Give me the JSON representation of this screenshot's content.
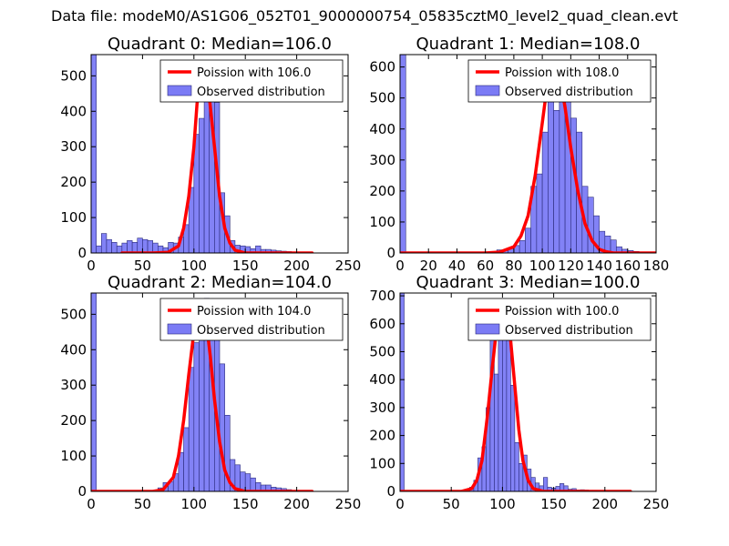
{
  "figure_title": "Data file: modeM0/AS1G06_052T01_9000000754_05835cztM0_level2_quad_clean.evt",
  "colors": {
    "bars": "#7b7bf5",
    "bar_edge": "#2a2a7a",
    "fit": "#ff0000"
  },
  "chart_data": [
    {
      "type": "bar",
      "title": "Quadrant 0: Median=106.0",
      "xlim": [
        0,
        250
      ],
      "ylim": [
        0,
        560
      ],
      "xticks": [
        0,
        50,
        100,
        150,
        200,
        250
      ],
      "yticks": [
        0,
        100,
        200,
        300,
        400,
        500
      ],
      "bin_width": 5,
      "bins": [
        [
          0,
          560
        ],
        [
          5,
          20
        ],
        [
          10,
          55
        ],
        [
          15,
          38
        ],
        [
          20,
          30
        ],
        [
          25,
          20
        ],
        [
          30,
          28
        ],
        [
          35,
          35
        ],
        [
          40,
          30
        ],
        [
          45,
          42
        ],
        [
          50,
          38
        ],
        [
          55,
          35
        ],
        [
          60,
          28
        ],
        [
          65,
          20
        ],
        [
          70,
          15
        ],
        [
          75,
          30
        ],
        [
          80,
          28
        ],
        [
          85,
          45
        ],
        [
          90,
          80
        ],
        [
          95,
          185
        ],
        [
          100,
          335
        ],
        [
          105,
          380
        ],
        [
          110,
          540
        ],
        [
          115,
          540
        ],
        [
          120,
          425
        ],
        [
          125,
          170
        ],
        [
          130,
          105
        ],
        [
          135,
          35
        ],
        [
          140,
          22
        ],
        [
          145,
          20
        ],
        [
          150,
          18
        ],
        [
          155,
          12
        ],
        [
          160,
          20
        ],
        [
          165,
          10
        ],
        [
          170,
          10
        ],
        [
          175,
          8
        ],
        [
          180,
          6
        ],
        [
          185,
          5
        ],
        [
          190,
          4
        ],
        [
          195,
          3
        ],
        [
          200,
          2
        ]
      ],
      "fit": {
        "x": [
          30,
          60,
          75,
          85,
          90,
          95,
          100,
          103,
          106,
          109,
          112,
          115,
          120,
          125,
          130,
          135,
          140,
          150,
          165,
          215
        ],
        "y": [
          0,
          0,
          2,
          20,
          70,
          160,
          300,
          420,
          500,
          540,
          520,
          440,
          300,
          160,
          70,
          28,
          8,
          0,
          0,
          0
        ]
      },
      "legend": [
        "Poission with 106.0",
        "Observed distribution"
      ],
      "legend_loc": "upper-right"
    },
    {
      "type": "bar",
      "title": "Quadrant 1: Median=108.0",
      "xlim": [
        0,
        180
      ],
      "ylim": [
        0,
        640
      ],
      "xticks": [
        0,
        20,
        40,
        60,
        80,
        100,
        120,
        140,
        160,
        180
      ],
      "yticks": [
        0,
        100,
        200,
        300,
        400,
        500,
        600
      ],
      "bin_width": 4,
      "bins": [
        [
          0,
          640
        ],
        [
          64,
          5
        ],
        [
          68,
          10
        ],
        [
          72,
          10
        ],
        [
          76,
          14
        ],
        [
          80,
          24
        ],
        [
          84,
          40
        ],
        [
          88,
          80
        ],
        [
          92,
          215
        ],
        [
          96,
          255
        ],
        [
          100,
          390
        ],
        [
          104,
          525
        ],
        [
          108,
          460
        ],
        [
          112,
          605
        ],
        [
          116,
          515
        ],
        [
          120,
          435
        ],
        [
          124,
          390
        ],
        [
          128,
          215
        ],
        [
          132,
          180
        ],
        [
          136,
          120
        ],
        [
          140,
          70
        ],
        [
          144,
          55
        ],
        [
          148,
          42
        ],
        [
          152,
          20
        ],
        [
          156,
          12
        ],
        [
          160,
          8
        ],
        [
          164,
          5
        ],
        [
          168,
          3
        ],
        [
          172,
          2
        ]
      ],
      "fit": {
        "x": [
          0,
          60,
          70,
          80,
          85,
          90,
          95,
          100,
          104,
          108,
          112,
          116,
          120,
          125,
          130,
          135,
          140,
          145,
          150,
          160,
          180
        ],
        "y": [
          0,
          0,
          3,
          20,
          55,
          120,
          250,
          420,
          560,
          610,
          580,
          470,
          340,
          200,
          95,
          40,
          12,
          4,
          0,
          0,
          0
        ]
      },
      "legend": [
        "Poission with 108.0",
        "Observed distribution"
      ],
      "legend_loc": "upper-right"
    },
    {
      "type": "bar",
      "title": "Quadrant 2: Median=104.0",
      "xlim": [
        0,
        250
      ],
      "ylim": [
        0,
        560
      ],
      "xticks": [
        0,
        50,
        100,
        150,
        200,
        250
      ],
      "yticks": [
        0,
        100,
        200,
        300,
        400,
        500
      ],
      "bin_width": 5,
      "bins": [
        [
          0,
          560
        ],
        [
          65,
          10
        ],
        [
          70,
          25
        ],
        [
          75,
          28
        ],
        [
          80,
          50
        ],
        [
          85,
          110
        ],
        [
          90,
          180
        ],
        [
          95,
          350
        ],
        [
          100,
          420
        ],
        [
          105,
          515
        ],
        [
          110,
          545
        ],
        [
          115,
          525
        ],
        [
          120,
          485
        ],
        [
          125,
          360
        ],
        [
          130,
          215
        ],
        [
          135,
          90
        ],
        [
          140,
          75
        ],
        [
          145,
          55
        ],
        [
          150,
          50
        ],
        [
          155,
          38
        ],
        [
          160,
          25
        ],
        [
          165,
          18
        ],
        [
          170,
          18
        ],
        [
          175,
          12
        ],
        [
          180,
          10
        ],
        [
          185,
          8
        ],
        [
          190,
          5
        ],
        [
          195,
          3
        ]
      ],
      "fit": {
        "x": [
          0,
          60,
          70,
          80,
          85,
          90,
          95,
          100,
          104,
          108,
          112,
          116,
          120,
          125,
          130,
          135,
          140,
          150,
          160,
          215
        ],
        "y": [
          0,
          0,
          5,
          40,
          100,
          200,
          330,
          450,
          515,
          525,
          480,
          380,
          260,
          140,
          60,
          25,
          8,
          0,
          0,
          0
        ]
      },
      "legend": [
        "Poission with 104.0",
        "Observed distribution"
      ],
      "legend_loc": "upper-right"
    },
    {
      "type": "bar",
      "title": "Quadrant 3: Median=100.0",
      "xlim": [
        0,
        250
      ],
      "ylim": [
        0,
        710
      ],
      "xticks": [
        0,
        50,
        100,
        150,
        200,
        250
      ],
      "yticks": [
        0,
        100,
        200,
        300,
        400,
        500,
        600,
        700
      ],
      "bin_width": 4,
      "bins": [
        [
          0,
          710
        ],
        [
          64,
          8
        ],
        [
          68,
          15
        ],
        [
          72,
          40
        ],
        [
          76,
          120
        ],
        [
          80,
          160
        ],
        [
          84,
          300
        ],
        [
          88,
          560
        ],
        [
          92,
          420
        ],
        [
          96,
          680
        ],
        [
          100,
          690
        ],
        [
          104,
          540
        ],
        [
          108,
          380
        ],
        [
          112,
          175
        ],
        [
          116,
          100
        ],
        [
          120,
          130
        ],
        [
          124,
          80
        ],
        [
          128,
          50
        ],
        [
          132,
          30
        ],
        [
          136,
          20
        ],
        [
          140,
          50
        ],
        [
          144,
          15
        ],
        [
          148,
          12
        ],
        [
          152,
          18
        ],
        [
          156,
          28
        ],
        [
          160,
          20
        ],
        [
          164,
          8
        ],
        [
          168,
          10
        ],
        [
          172,
          5
        ],
        [
          176,
          6
        ],
        [
          180,
          5
        ],
        [
          184,
          4
        ],
        [
          188,
          4
        ],
        [
          192,
          3
        ],
        [
          196,
          2
        ]
      ],
      "fit": {
        "x": [
          0,
          60,
          70,
          75,
          80,
          85,
          90,
          95,
          100,
          104,
          108,
          112,
          116,
          120,
          125,
          130,
          140,
          225
        ],
        "y": [
          0,
          0,
          10,
          40,
          110,
          260,
          440,
          610,
          680,
          650,
          540,
          380,
          220,
          110,
          40,
          10,
          0,
          0
        ]
      },
      "legend": [
        "Poission with 100.0",
        "Observed distribution"
      ],
      "legend_loc": "upper-right"
    }
  ]
}
